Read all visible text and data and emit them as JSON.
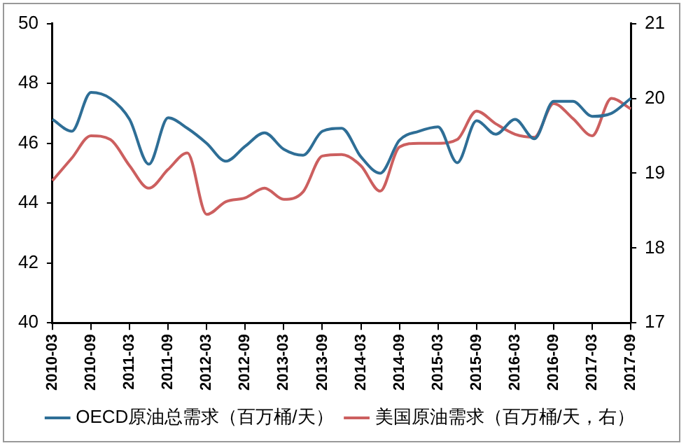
{
  "chart_data": {
    "type": "line",
    "categories": [
      "2010-03",
      null,
      "2010-09",
      null,
      "2011-03",
      null,
      "2011-09",
      null,
      "2012-03",
      null,
      "2012-09",
      null,
      "2013-03",
      null,
      "2013-09",
      null,
      "2014-03",
      null,
      "2014-09",
      null,
      "2015-03",
      null,
      "2015-09",
      null,
      "2016-03",
      null,
      "2016-09",
      null,
      "2017-03",
      null,
      "2017-09"
    ],
    "series": [
      {
        "name": "OECD原油总需求（百万桶/天）",
        "color": "#2e6e96",
        "values": [
          46.8,
          46.4,
          47.7,
          47.5,
          46.8,
          45.3,
          46.85,
          46.5,
          46.0,
          45.4,
          45.9,
          46.35,
          45.8,
          45.6,
          46.4,
          46.5,
          45.55,
          45.0,
          46.1,
          46.4,
          46.55,
          45.35,
          46.75,
          46.3,
          46.8,
          46.15,
          47.4,
          47.4,
          46.9,
          47.0,
          47.5
        ]
      },
      {
        "name": "美国原油需求（百万桶/天，右）",
        "color": "#cc5f5f",
        "axis": "y2",
        "values": [
          18.9,
          19.2,
          19.5,
          19.45,
          19.1,
          18.8,
          19.05,
          19.27,
          18.45,
          18.62,
          18.67,
          18.8,
          18.65,
          18.75,
          19.23,
          19.25,
          19.1,
          18.76,
          19.35,
          19.4,
          19.4,
          19.45,
          19.83,
          19.66,
          19.52,
          19.48,
          19.93,
          19.73,
          19.5,
          20.0,
          19.86
        ]
      }
    ],
    "ylim": [
      40,
      50
    ],
    "yticks": [
      40,
      42,
      44,
      46,
      48,
      50
    ],
    "y2lim": [
      17,
      21
    ],
    "y2ticks": [
      17,
      18,
      19,
      20,
      21
    ],
    "legend": "bottom",
    "grid": false,
    "marker": "none",
    "line_style": "solid"
  }
}
